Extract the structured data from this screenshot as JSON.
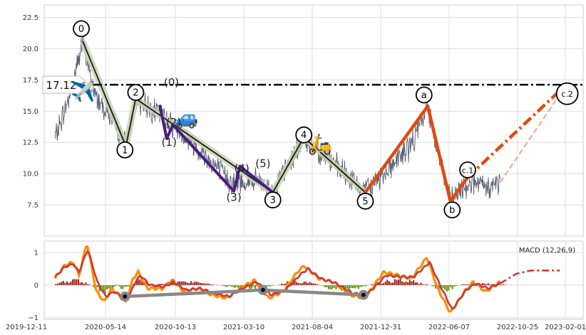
{
  "chart_data": [
    {
      "type": "line",
      "title": "",
      "xlabel": "",
      "ylabel": "",
      "ylim": [
        5.0,
        23.5
      ],
      "y_ticks": [
        7.5,
        10.0,
        12.5,
        15.0,
        17.5,
        20.0,
        22.5
      ],
      "y_tick_labels": [
        "7.5",
        "10.0",
        "12.5",
        "15.0",
        "17.5",
        "20.0",
        "22.5"
      ],
      "x_tick_labels": [
        "2019-12-11",
        "2020-05-14",
        "2020-10-13",
        "2021-03-10",
        "2021-08-04",
        "2021-12-31",
        "2022-06-07",
        "2022-10-25",
        "2023-02-01"
      ],
      "grid": true,
      "price_series": {
        "name": "price",
        "color": "#5a6170",
        "anchors": [
          {
            "x": "2020-02-10",
            "y": 12.8
          },
          {
            "x": "2020-03-10",
            "y": 16.0
          },
          {
            "x": "2020-04-09",
            "y": 20.6
          },
          {
            "x": "2020-05-05",
            "y": 16.3
          },
          {
            "x": "2020-06-01",
            "y": 15.0
          },
          {
            "x": "2020-07-10",
            "y": 12.2
          },
          {
            "x": "2020-07-31",
            "y": 16.0
          },
          {
            "x": "2020-10-01",
            "y": 14.5
          },
          {
            "x": "2020-12-01",
            "y": 12.4
          },
          {
            "x": "2021-02-20",
            "y": 9.3
          },
          {
            "x": "2021-04-15",
            "y": 9.4
          },
          {
            "x": "2021-05-19",
            "y": 8.5
          },
          {
            "x": "2021-07-24",
            "y": 12.9
          },
          {
            "x": "2021-12-02",
            "y": 8.5
          },
          {
            "x": "2022-03-10",
            "y": 12.3
          },
          {
            "x": "2022-04-14",
            "y": 15.4
          },
          {
            "x": "2022-06-01",
            "y": 7.8
          },
          {
            "x": "2022-07-15",
            "y": 9.4
          },
          {
            "x": "2022-08-15",
            "y": 8.8
          },
          {
            "x": "2022-09-15",
            "y": 9.3
          }
        ]
      },
      "reference_line": {
        "y": 17.12,
        "label": "17.12",
        "color": "#000000"
      },
      "wave_series": [
        {
          "color": "#c8d4b0",
          "points": [
            {
              "x": "2020-04-09",
              "y": 20.6
            },
            {
              "x": "2020-07-10",
              "y": 12.2
            },
            {
              "x": "2020-07-31",
              "y": 16.0
            },
            {
              "x": "2021-05-19",
              "y": 8.5
            },
            {
              "x": "2021-07-24",
              "y": 12.9
            },
            {
              "x": "2021-12-02",
              "y": 8.5
            }
          ]
        },
        {
          "color": "#1a1a1a",
          "points": [
            {
              "x": "2020-04-09",
              "y": 20.6
            },
            {
              "x": "2020-07-10",
              "y": 12.2
            },
            {
              "x": "2020-07-31",
              "y": 16.0
            },
            {
              "x": "2021-05-19",
              "y": 8.5
            },
            {
              "x": "2021-07-24",
              "y": 12.9
            },
            {
              "x": "2021-12-02",
              "y": 8.5
            }
          ]
        },
        {
          "color": "#4b1d82",
          "points": [
            {
              "x": "2020-09-20",
              "y": 15.5
            },
            {
              "x": "2020-10-05",
              "y": 12.8
            },
            {
              "x": "2020-10-18",
              "y": 13.9
            },
            {
              "x": "2021-02-25",
              "y": 8.6
            },
            {
              "x": "2021-03-10",
              "y": 10.6
            },
            {
              "x": "2021-05-19",
              "y": 8.5
            }
          ]
        },
        {
          "color": "#e04a10",
          "points": [
            {
              "x": "2021-12-02",
              "y": 8.5
            },
            {
              "x": "2022-04-14",
              "y": 15.4
            },
            {
              "x": "2022-06-01",
              "y": 7.8
            },
            {
              "x": "2022-07-08",
              "y": 9.7
            }
          ]
        }
      ],
      "projection": {
        "color": "#e04a10",
        "light_color": "#f4b39a",
        "points": [
          {
            "x": "2022-07-08",
            "y": 9.7
          },
          {
            "x": "2023-02-05",
            "y": 17.2
          }
        ],
        "light_points": [
          {
            "x": "2022-09-15",
            "y": 9.3
          },
          {
            "x": "2023-02-05",
            "y": 17.2
          }
        ]
      },
      "annotations": [
        {
          "text": "0",
          "x": "2020-04-06",
          "y": 21.6,
          "style": "circle"
        },
        {
          "text": "1",
          "x": "2020-07-08",
          "y": 11.9,
          "style": "circle"
        },
        {
          "text": "2",
          "x": "2020-07-31",
          "y": 16.5,
          "style": "circle"
        },
        {
          "text": "3",
          "x": "2021-05-19",
          "y": 7.9,
          "style": "circle"
        },
        {
          "text": "4",
          "x": "2021-07-24",
          "y": 13.1,
          "style": "circle"
        },
        {
          "text": "5",
          "x": "2021-12-02",
          "y": 7.8,
          "style": "circle"
        },
        {
          "text": "a",
          "x": "2022-04-06",
          "y": 16.3,
          "style": "circle"
        },
        {
          "text": "b",
          "x": "2022-06-05",
          "y": 7.1,
          "style": "circle"
        },
        {
          "text": "c.1",
          "x": "2022-07-08",
          "y": 10.3,
          "style": "circle"
        },
        {
          "text": "c.2",
          "x": "2023-02-05",
          "y": 16.4,
          "style": "circle"
        },
        {
          "text": "(0)",
          "x": "2020-10-15",
          "y": 17.3,
          "style": "plain"
        },
        {
          "text": "(1)",
          "x": "2020-10-10",
          "y": 12.5,
          "style": "plain"
        },
        {
          "text": "(2)",
          "x": "2020-10-20",
          "y": 14.1,
          "style": "plain"
        },
        {
          "text": "(3)",
          "x": "2021-02-25",
          "y": 8.1,
          "style": "plain"
        },
        {
          "text": "(4)",
          "x": "2021-03-14",
          "y": 10.4,
          "style": "plain"
        },
        {
          "text": "(5)",
          "x": "2021-04-28",
          "y": 10.8,
          "style": "plain"
        }
      ],
      "emoji_markers": [
        {
          "icon": "✈️",
          "name": "airplane-icon",
          "x": "2020-04-10",
          "y": 16.6
        },
        {
          "icon": "🚙",
          "name": "car-icon",
          "x": "2020-11-15",
          "y": 14.5
        },
        {
          "icon": "🛵",
          "name": "scooter-icon",
          "x": "2021-08-28",
          "y": 12.4
        }
      ]
    },
    {
      "type": "line",
      "title": "",
      "legend_label": "MACD (12,26,9)",
      "ylim": [
        -1.05,
        1.35
      ],
      "y_ticks": [
        -1,
        0,
        1
      ],
      "y_tick_labels": [
        "−1",
        "0",
        "1"
      ],
      "grid": true,
      "series": [
        {
          "name": "MACD",
          "color": "#ff8c00",
          "anchors": [
            {
              "x": "2020-02-10",
              "y": 0.2
            },
            {
              "x": "2020-03-01",
              "y": 0.6
            },
            {
              "x": "2020-03-20",
              "y": 0.7
            },
            {
              "x": "2020-04-01",
              "y": 0.3
            },
            {
              "x": "2020-04-18",
              "y": 1.3
            },
            {
              "x": "2020-05-08",
              "y": -0.2
            },
            {
              "x": "2020-05-25",
              "y": -0.5
            },
            {
              "x": "2020-06-10",
              "y": -0.1
            },
            {
              "x": "2020-06-25",
              "y": -0.3
            },
            {
              "x": "2020-07-10",
              "y": -0.55
            },
            {
              "x": "2020-07-25",
              "y": 0.2
            },
            {
              "x": "2020-08-05",
              "y": 0.4
            },
            {
              "x": "2020-08-25",
              "y": -0.1
            },
            {
              "x": "2020-09-25",
              "y": -0.1
            },
            {
              "x": "2020-10-18",
              "y": 0.15
            },
            {
              "x": "2020-11-10",
              "y": -0.2
            },
            {
              "x": "2020-12-10",
              "y": -0.1
            },
            {
              "x": "2021-01-10",
              "y": -0.3
            },
            {
              "x": "2021-02-10",
              "y": -0.4
            },
            {
              "x": "2021-03-10",
              "y": -0.1
            },
            {
              "x": "2021-04-10",
              "y": 0.15
            },
            {
              "x": "2021-05-10",
              "y": -0.4
            },
            {
              "x": "2021-06-10",
              "y": -0.2
            },
            {
              "x": "2021-07-10",
              "y": 0.4
            },
            {
              "x": "2021-07-25",
              "y": 0.6
            },
            {
              "x": "2021-08-25",
              "y": 0.2
            },
            {
              "x": "2021-09-25",
              "y": 0.1
            },
            {
              "x": "2021-11-01",
              "y": -0.3
            },
            {
              "x": "2021-12-01",
              "y": -0.4
            },
            {
              "x": "2022-01-10",
              "y": 0.4
            },
            {
              "x": "2022-02-10",
              "y": 0.3
            },
            {
              "x": "2022-03-10",
              "y": 0.2
            },
            {
              "x": "2022-04-12",
              "y": 0.85
            },
            {
              "x": "2022-05-05",
              "y": -0.1
            },
            {
              "x": "2022-06-01",
              "y": -0.85
            },
            {
              "x": "2022-07-01",
              "y": -0.2
            },
            {
              "x": "2022-07-20",
              "y": 0.1
            },
            {
              "x": "2022-08-15",
              "y": -0.2
            },
            {
              "x": "2022-09-15",
              "y": 0.1
            }
          ]
        },
        {
          "name": "Signal",
          "color": "#c83a3a",
          "anchors": [
            {
              "x": "2020-02-10",
              "y": 0.25
            },
            {
              "x": "2020-03-01",
              "y": 0.55
            },
            {
              "x": "2020-03-20",
              "y": 0.65
            },
            {
              "x": "2020-04-01",
              "y": 0.4
            },
            {
              "x": "2020-04-20",
              "y": 1.1
            },
            {
              "x": "2020-05-10",
              "y": 0.1
            },
            {
              "x": "2020-05-28",
              "y": -0.35
            },
            {
              "x": "2020-06-15",
              "y": -0.2
            },
            {
              "x": "2020-07-01",
              "y": -0.35
            },
            {
              "x": "2020-07-15",
              "y": -0.4
            },
            {
              "x": "2020-07-30",
              "y": 0.1
            },
            {
              "x": "2020-08-10",
              "y": 0.3
            },
            {
              "x": "2020-08-30",
              "y": 0.0
            },
            {
              "x": "2020-09-30",
              "y": -0.05
            },
            {
              "x": "2020-10-20",
              "y": 0.1
            },
            {
              "x": "2020-11-15",
              "y": -0.15
            },
            {
              "x": "2020-12-15",
              "y": -0.1
            },
            {
              "x": "2021-01-15",
              "y": -0.25
            },
            {
              "x": "2021-02-15",
              "y": -0.35
            },
            {
              "x": "2021-03-15",
              "y": -0.1
            },
            {
              "x": "2021-04-15",
              "y": 0.1
            },
            {
              "x": "2021-05-15",
              "y": -0.3
            },
            {
              "x": "2021-06-15",
              "y": -0.15
            },
            {
              "x": "2021-07-15",
              "y": 0.3
            },
            {
              "x": "2021-08-01",
              "y": 0.5
            },
            {
              "x": "2021-08-30",
              "y": 0.2
            },
            {
              "x": "2021-10-01",
              "y": 0.05
            },
            {
              "x": "2021-11-05",
              "y": -0.25
            },
            {
              "x": "2021-12-05",
              "y": -0.3
            },
            {
              "x": "2022-01-15",
              "y": 0.3
            },
            {
              "x": "2022-02-15",
              "y": 0.25
            },
            {
              "x": "2022-03-15",
              "y": 0.25
            },
            {
              "x": "2022-04-18",
              "y": 0.7
            },
            {
              "x": "2022-05-10",
              "y": 0.0
            },
            {
              "x": "2022-06-05",
              "y": -0.75
            },
            {
              "x": "2022-07-05",
              "y": -0.15
            },
            {
              "x": "2022-07-25",
              "y": 0.05
            },
            {
              "x": "2022-08-20",
              "y": -0.1
            },
            {
              "x": "2022-09-15",
              "y": 0.05
            }
          ]
        }
      ],
      "signal_projection": {
        "color": "#c83a3a",
        "points": [
          {
            "x": "2022-09-15",
            "y": 0.05
          },
          {
            "x": "2022-10-20",
            "y": 0.35
          },
          {
            "x": "2022-11-20",
            "y": 0.45
          },
          {
            "x": "2023-01-20",
            "y": 0.45
          }
        ]
      },
      "histogram": {
        "positive_color": "#a03028",
        "negative_color": "#6a9a20",
        "segments": [
          {
            "from": "2020-02-10",
            "to": "2020-05-01",
            "amp": 0.18
          },
          {
            "from": "2020-05-01",
            "to": "2020-06-20",
            "amp": -0.28
          },
          {
            "from": "2020-06-20",
            "to": "2020-07-20",
            "amp": -0.12
          },
          {
            "from": "2020-07-20",
            "to": "2020-09-01",
            "amp": 0.15
          },
          {
            "from": "2020-09-01",
            "to": "2021-02-01",
            "amp": 0.12
          },
          {
            "from": "2021-02-01",
            "to": "2021-06-01",
            "amp": -0.12
          },
          {
            "from": "2021-06-01",
            "to": "2021-09-01",
            "amp": 0.14
          },
          {
            "from": "2021-09-01",
            "to": "2021-12-15",
            "amp": -0.18
          },
          {
            "from": "2021-12-15",
            "to": "2022-04-25",
            "amp": 0.16
          },
          {
            "from": "2022-04-25",
            "to": "2022-06-20",
            "amp": -0.22
          },
          {
            "from": "2022-06-20",
            "to": "2022-10-10",
            "amp": 0.06
          }
        ]
      },
      "divergence_line": {
        "color": "#888888",
        "points": [
          {
            "x": "2020-07-08",
            "y": -0.35
          },
          {
            "x": "2021-04-28",
            "y": -0.15
          },
          {
            "x": "2021-11-28",
            "y": -0.3
          }
        ]
      }
    }
  ]
}
